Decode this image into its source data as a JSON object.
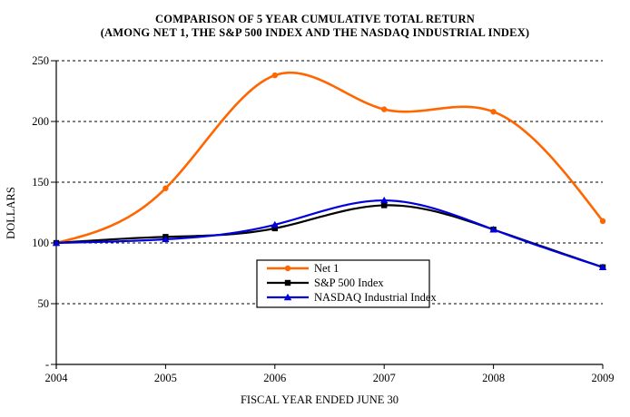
{
  "title": {
    "line1": "COMPARISON OF 5 YEAR CUMULATIVE TOTAL RETURN",
    "line2": "(AMONG NET 1, THE S&P 500 INDEX AND THE NASDAQ INDUSTRIAL INDEX)"
  },
  "chart_data": {
    "type": "line",
    "title": "COMPARISON OF 5 YEAR CUMULATIVE TOTAL RETURN (AMONG NET 1, THE S&P 500 INDEX AND THE NASDAQ INDUSTRIAL INDEX)",
    "xlabel": "FISCAL YEAR ENDED JUNE 30",
    "ylabel": "DOLLARS",
    "x_categories": [
      "2004",
      "2005",
      "2006",
      "2007",
      "2008",
      "2009"
    ],
    "y_ticks": {
      "values": [
        250,
        200,
        150,
        100,
        50,
        0
      ],
      "labels": [
        "250",
        "200",
        "150",
        "100",
        "50",
        "-"
      ]
    },
    "ylim": [
      0,
      250
    ],
    "grid": "horizontal-dashed",
    "line_style": "smoothed-spline",
    "legend_position": "inside-bottom-center",
    "series": [
      {
        "name": "Net 1",
        "color": "#FF6600",
        "marker": "circle",
        "values": [
          100,
          145,
          238,
          210,
          208,
          118
        ]
      },
      {
        "name": "S&P 500 Index",
        "color": "#000000",
        "marker": "square",
        "values": [
          100,
          105,
          112,
          131,
          111,
          80
        ]
      },
      {
        "name": "NASDAQ Industrial Index",
        "color": "#0000DD",
        "marker": "triangle",
        "values": [
          100,
          103,
          115,
          135,
          111,
          80
        ]
      }
    ]
  }
}
